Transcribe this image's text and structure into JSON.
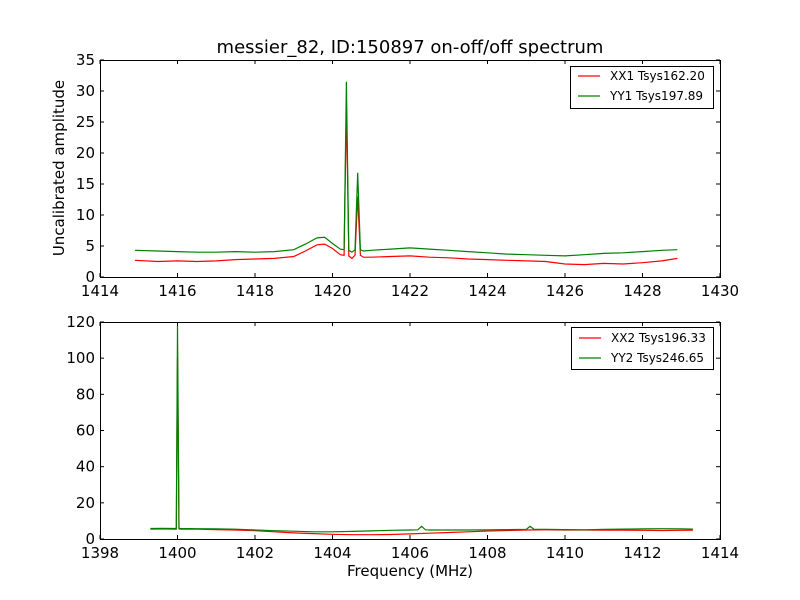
{
  "chart_data": [
    {
      "type": "line",
      "title": "messier_82, ID:150897 on-off/off spectrum",
      "xlabel": "",
      "ylabel": "Uncalibrated amplitude",
      "xlim": [
        1414,
        1430
      ],
      "ylim": [
        0,
        35
      ],
      "xticks": [
        "1414",
        "1416",
        "1418",
        "1420",
        "1422",
        "1424",
        "1426",
        "1428",
        "1430"
      ],
      "yticks": [
        "0",
        "5",
        "10",
        "15",
        "20",
        "25",
        "30",
        "35"
      ],
      "grid": false,
      "legend_position": "top-right",
      "series": [
        {
          "name": "XX1 Tsys162.20",
          "color": "#ff0000",
          "x": [
            1414.9,
            1415.5,
            1416,
            1416.5,
            1417,
            1417.5,
            1418,
            1418.5,
            1419,
            1419.3,
            1419.6,
            1419.8,
            1420,
            1420.2,
            1420.3,
            1420.36,
            1420.42,
            1420.5,
            1420.58,
            1420.65,
            1420.72,
            1420.8,
            1421,
            1421.5,
            1422,
            1422.5,
            1423,
            1423.5,
            1424,
            1424.5,
            1425,
            1425.5,
            1426,
            1426.5,
            1427,
            1427.5,
            1428,
            1428.5,
            1428.9
          ],
          "y": [
            2.7,
            2.5,
            2.6,
            2.5,
            2.6,
            2.8,
            2.9,
            3.0,
            3.3,
            4.2,
            5.2,
            5.3,
            4.6,
            3.6,
            3.5,
            27.5,
            3.4,
            3.0,
            3.5,
            13.0,
            3.5,
            3.2,
            3.2,
            3.3,
            3.4,
            3.2,
            3.1,
            2.9,
            2.8,
            2.7,
            2.6,
            2.5,
            2.1,
            2.0,
            2.2,
            2.1,
            2.3,
            2.6,
            3.0
          ]
        },
        {
          "name": "YY1 Tsys197.89",
          "color": "#008000",
          "x": [
            1414.9,
            1415.5,
            1416,
            1416.5,
            1417,
            1417.5,
            1418,
            1418.5,
            1419,
            1419.3,
            1419.6,
            1419.8,
            1420,
            1420.2,
            1420.3,
            1420.36,
            1420.42,
            1420.5,
            1420.58,
            1420.65,
            1420.72,
            1420.8,
            1421,
            1421.5,
            1422,
            1422.5,
            1423,
            1423.5,
            1424,
            1424.5,
            1425,
            1425.5,
            1426,
            1426.5,
            1427,
            1427.5,
            1428,
            1428.5,
            1428.9
          ],
          "y": [
            4.3,
            4.2,
            4.1,
            4.0,
            4.0,
            4.1,
            4.0,
            4.1,
            4.4,
            5.3,
            6.3,
            6.4,
            5.4,
            4.5,
            4.4,
            31.5,
            4.3,
            4.0,
            4.4,
            16.8,
            4.4,
            4.2,
            4.3,
            4.5,
            4.7,
            4.5,
            4.3,
            4.1,
            3.9,
            3.7,
            3.6,
            3.5,
            3.4,
            3.6,
            3.8,
            3.9,
            4.1,
            4.3,
            4.4
          ]
        }
      ]
    },
    {
      "type": "line",
      "title": "",
      "xlabel": "Frequency (MHz)",
      "ylabel": "",
      "xlim": [
        1398,
        1414
      ],
      "ylim": [
        0,
        120
      ],
      "xticks": [
        "1398",
        "1400",
        "1402",
        "1404",
        "1406",
        "1408",
        "1410",
        "1412",
        "1414"
      ],
      "yticks": [
        "0",
        "20",
        "40",
        "60",
        "80",
        "100",
        "120"
      ],
      "grid": false,
      "legend_position": "top-right",
      "series": [
        {
          "name": "XX2 Tsys196.33",
          "color": "#ff0000",
          "x": [
            1399.3,
            1399.6,
            1399.9,
            1399.97,
            1400.0,
            1400.04,
            1400.1,
            1400.5,
            1401,
            1401.5,
            1402,
            1402.5,
            1403,
            1403.5,
            1404,
            1404.5,
            1405,
            1405.5,
            1406,
            1406.5,
            1407,
            1407.5,
            1408,
            1408.5,
            1409,
            1409.5,
            1410,
            1410.5,
            1411,
            1411.5,
            1412,
            1412.5,
            1413,
            1413.3
          ],
          "y": [
            5.5,
            5.6,
            5.5,
            5.5,
            100,
            5.6,
            5.5,
            5.4,
            5.2,
            5.0,
            4.6,
            4.0,
            3.4,
            3.0,
            2.6,
            2.4,
            2.4,
            2.5,
            2.8,
            3.2,
            3.6,
            4.0,
            4.4,
            4.7,
            5.0,
            5.1,
            5.0,
            5.0,
            4.9,
            4.9,
            4.8,
            4.7,
            4.8,
            4.9
          ]
        },
        {
          "name": "YY2 Tsys246.65",
          "color": "#008000",
          "x": [
            1399.3,
            1399.6,
            1399.9,
            1399.97,
            1400.0,
            1400.04,
            1400.1,
            1400.5,
            1401,
            1401.5,
            1402,
            1402.5,
            1403,
            1403.5,
            1404,
            1404.5,
            1405,
            1405.5,
            1406,
            1406.2,
            1406.3,
            1406.4,
            1406.5,
            1407,
            1407.5,
            1408,
            1408.5,
            1409,
            1409.1,
            1409.2,
            1409.5,
            1410,
            1410.5,
            1411,
            1411.5,
            1412,
            1412.5,
            1413,
            1413.3
          ],
          "y": [
            5.8,
            5.9,
            5.8,
            5.8,
            118,
            5.9,
            5.8,
            5.7,
            5.6,
            5.4,
            5.0,
            4.6,
            4.3,
            4.0,
            4.0,
            4.2,
            4.5,
            4.8,
            5.0,
            5.1,
            7.0,
            5.1,
            5.0,
            5.0,
            5.0,
            5.1,
            5.2,
            5.3,
            7.0,
            5.3,
            5.3,
            5.2,
            5.1,
            5.3,
            5.5,
            5.6,
            5.7,
            5.6,
            5.5
          ]
        }
      ]
    }
  ]
}
